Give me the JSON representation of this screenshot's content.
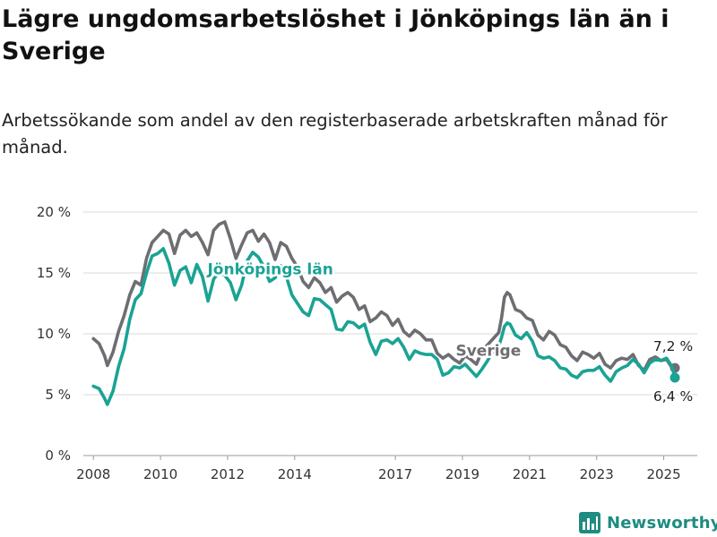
{
  "title": "Lägre ungdomsarbetslöshet i Jönköpings län än i Sverige",
  "subtitle": "Arbetssökande som andel av den registerbaserade arbetskraften månad för månad.",
  "brand": "Newsworthy",
  "colors": {
    "jonkoping": "#1aa394",
    "sverige": "#6e6e72",
    "grid": "#d9d9d9",
    "brand": "#1e8c80"
  },
  "chart_data": {
    "type": "line",
    "title": "Lägre ungdomsarbetslöshet i Jönköpings län än i Sverige",
    "subtitle": "Arbetssökande som andel av den registerbaserade arbetskraften månad för månad.",
    "xlabel": "",
    "ylabel": "",
    "x_ticks": [
      "2008",
      "2010",
      "2012",
      "2014",
      "2017",
      "2019",
      "2021",
      "2023",
      "2025"
    ],
    "y_ticks": [
      "0 %",
      "5 %",
      "10 %",
      "15 %",
      "20 %"
    ],
    "ylim": [
      0,
      20
    ],
    "grid": "horizontal",
    "legend": "inline labels",
    "end_labels": {
      "sverige": "7,2 %",
      "jonkoping": "6,4 %"
    },
    "series": [
      {
        "name": "Sverige",
        "key": "sverige",
        "points": [
          [
            "2008-01",
            9.6
          ],
          [
            "2008-03",
            9.2
          ],
          [
            "2008-05",
            8.2
          ],
          [
            "2008-06",
            7.4
          ],
          [
            "2008-08",
            8.5
          ],
          [
            "2008-10",
            10.2
          ],
          [
            "2008-12",
            11.5
          ],
          [
            "2009-02",
            13.2
          ],
          [
            "2009-04",
            14.3
          ],
          [
            "2009-06",
            14.0
          ],
          [
            "2009-08",
            16.2
          ],
          [
            "2009-10",
            17.5
          ],
          [
            "2009-12",
            18.0
          ],
          [
            "2010-02",
            18.5
          ],
          [
            "2010-04",
            18.2
          ],
          [
            "2010-06",
            16.6
          ],
          [
            "2010-08",
            18.1
          ],
          [
            "2010-10",
            18.5
          ],
          [
            "2010-12",
            18.0
          ],
          [
            "2011-02",
            18.3
          ],
          [
            "2011-04",
            17.5
          ],
          [
            "2011-06",
            16.5
          ],
          [
            "2011-08",
            18.5
          ],
          [
            "2011-10",
            19.0
          ],
          [
            "2011-12",
            19.2
          ],
          [
            "2012-02",
            17.8
          ],
          [
            "2012-04",
            16.2
          ],
          [
            "2012-06",
            17.3
          ],
          [
            "2012-08",
            18.3
          ],
          [
            "2012-10",
            18.5
          ],
          [
            "2012-12",
            17.6
          ],
          [
            "2013-02",
            18.2
          ],
          [
            "2013-04",
            17.5
          ],
          [
            "2013-06",
            16.1
          ],
          [
            "2013-08",
            17.5
          ],
          [
            "2013-10",
            17.2
          ],
          [
            "2013-12",
            16.2
          ],
          [
            "2014-02",
            15.5
          ],
          [
            "2014-04",
            14.3
          ],
          [
            "2014-06",
            13.8
          ],
          [
            "2014-08",
            14.6
          ],
          [
            "2014-10",
            14.2
          ],
          [
            "2014-12",
            13.4
          ],
          [
            "2015-02",
            13.8
          ],
          [
            "2015-04",
            12.6
          ],
          [
            "2015-06",
            13.1
          ],
          [
            "2015-08",
            13.4
          ],
          [
            "2015-10",
            13.0
          ],
          [
            "2015-12",
            12.0
          ],
          [
            "2016-02",
            12.3
          ],
          [
            "2016-04",
            11.0
          ],
          [
            "2016-06",
            11.3
          ],
          [
            "2016-08",
            11.8
          ],
          [
            "2016-10",
            11.5
          ],
          [
            "2016-12",
            10.7
          ],
          [
            "2017-02",
            11.2
          ],
          [
            "2017-04",
            10.2
          ],
          [
            "2017-06",
            9.8
          ],
          [
            "2017-08",
            10.3
          ],
          [
            "2017-10",
            10.0
          ],
          [
            "2017-12",
            9.5
          ],
          [
            "2018-02",
            9.5
          ],
          [
            "2018-04",
            8.4
          ],
          [
            "2018-06",
            8.0
          ],
          [
            "2018-08",
            8.3
          ],
          [
            "2018-10",
            7.9
          ],
          [
            "2018-12",
            7.6
          ],
          [
            "2019-02",
            8.2
          ],
          [
            "2019-04",
            7.9
          ],
          [
            "2019-06",
            7.5
          ],
          [
            "2019-08",
            8.6
          ],
          [
            "2019-10",
            9.1
          ],
          [
            "2019-12",
            9.6
          ],
          [
            "2020-02",
            10.1
          ],
          [
            "2020-03",
            11.3
          ],
          [
            "2020-04",
            13.0
          ],
          [
            "2020-05",
            13.4
          ],
          [
            "2020-06",
            13.2
          ],
          [
            "2020-08",
            12.0
          ],
          [
            "2020-10",
            11.8
          ],
          [
            "2020-12",
            11.3
          ],
          [
            "2021-02",
            11.1
          ],
          [
            "2021-04",
            9.9
          ],
          [
            "2021-06",
            9.5
          ],
          [
            "2021-08",
            10.2
          ],
          [
            "2021-10",
            9.9
          ],
          [
            "2021-12",
            9.1
          ],
          [
            "2022-02",
            8.9
          ],
          [
            "2022-04",
            8.2
          ],
          [
            "2022-06",
            7.8
          ],
          [
            "2022-08",
            8.5
          ],
          [
            "2022-10",
            8.3
          ],
          [
            "2022-12",
            8.0
          ],
          [
            "2023-02",
            8.4
          ],
          [
            "2023-04",
            7.5
          ],
          [
            "2023-06",
            7.2
          ],
          [
            "2023-08",
            7.8
          ],
          [
            "2023-10",
            8.0
          ],
          [
            "2023-12",
            7.9
          ],
          [
            "2024-02",
            8.3
          ],
          [
            "2024-04",
            7.4
          ],
          [
            "2024-06",
            7.0
          ],
          [
            "2024-08",
            7.9
          ],
          [
            "2024-10",
            8.1
          ],
          [
            "2024-12",
            7.8
          ],
          [
            "2025-02",
            7.9
          ],
          [
            "2025-04",
            7.2
          ],
          [
            "2025-05",
            7.2
          ]
        ]
      },
      {
        "name": "Jönköpings län",
        "key": "jonkoping",
        "points": [
          [
            "2008-01",
            5.7
          ],
          [
            "2008-03",
            5.5
          ],
          [
            "2008-05",
            4.7
          ],
          [
            "2008-06",
            4.2
          ],
          [
            "2008-08",
            5.3
          ],
          [
            "2008-10",
            7.3
          ],
          [
            "2008-12",
            8.8
          ],
          [
            "2009-02",
            11.2
          ],
          [
            "2009-04",
            12.8
          ],
          [
            "2009-06",
            13.3
          ],
          [
            "2009-08",
            15.0
          ],
          [
            "2009-10",
            16.4
          ],
          [
            "2009-12",
            16.6
          ],
          [
            "2010-02",
            17.0
          ],
          [
            "2010-04",
            15.8
          ],
          [
            "2010-06",
            14.0
          ],
          [
            "2010-08",
            15.2
          ],
          [
            "2010-10",
            15.5
          ],
          [
            "2010-12",
            14.2
          ],
          [
            "2011-02",
            15.7
          ],
          [
            "2011-04",
            14.7
          ],
          [
            "2011-06",
            12.7
          ],
          [
            "2011-08",
            14.5
          ],
          [
            "2011-10",
            15.1
          ],
          [
            "2011-12",
            14.8
          ],
          [
            "2012-02",
            14.2
          ],
          [
            "2012-04",
            12.8
          ],
          [
            "2012-06",
            14.0
          ],
          [
            "2012-08",
            16.0
          ],
          [
            "2012-10",
            16.7
          ],
          [
            "2012-12",
            16.3
          ],
          [
            "2013-02",
            15.5
          ],
          [
            "2013-04",
            14.3
          ],
          [
            "2013-06",
            14.6
          ],
          [
            "2013-08",
            15.6
          ],
          [
            "2013-10",
            14.7
          ],
          [
            "2013-12",
            13.2
          ],
          [
            "2014-02",
            12.5
          ],
          [
            "2014-04",
            11.8
          ],
          [
            "2014-06",
            11.5
          ],
          [
            "2014-08",
            12.9
          ],
          [
            "2014-10",
            12.8
          ],
          [
            "2014-12",
            12.4
          ],
          [
            "2015-02",
            12.0
          ],
          [
            "2015-04",
            10.4
          ],
          [
            "2015-06",
            10.3
          ],
          [
            "2015-08",
            11.0
          ],
          [
            "2015-10",
            10.9
          ],
          [
            "2015-12",
            10.5
          ],
          [
            "2016-02",
            10.8
          ],
          [
            "2016-04",
            9.3
          ],
          [
            "2016-06",
            8.3
          ],
          [
            "2016-08",
            9.4
          ],
          [
            "2016-10",
            9.5
          ],
          [
            "2016-12",
            9.2
          ],
          [
            "2017-02",
            9.6
          ],
          [
            "2017-04",
            8.9
          ],
          [
            "2017-06",
            7.9
          ],
          [
            "2017-08",
            8.6
          ],
          [
            "2017-10",
            8.4
          ],
          [
            "2017-12",
            8.3
          ],
          [
            "2018-02",
            8.3
          ],
          [
            "2018-04",
            7.9
          ],
          [
            "2018-06",
            6.6
          ],
          [
            "2018-08",
            6.8
          ],
          [
            "2018-10",
            7.3
          ],
          [
            "2018-12",
            7.2
          ],
          [
            "2019-02",
            7.5
          ],
          [
            "2019-04",
            7.0
          ],
          [
            "2019-06",
            6.5
          ],
          [
            "2019-08",
            7.1
          ],
          [
            "2019-10",
            7.8
          ],
          [
            "2019-12",
            8.6
          ],
          [
            "2020-02",
            9.0
          ],
          [
            "2020-03",
            9.7
          ],
          [
            "2020-04",
            10.6
          ],
          [
            "2020-05",
            10.9
          ],
          [
            "2020-06",
            10.8
          ],
          [
            "2020-08",
            9.9
          ],
          [
            "2020-10",
            9.6
          ],
          [
            "2020-12",
            10.1
          ],
          [
            "2021-02",
            9.4
          ],
          [
            "2021-04",
            8.2
          ],
          [
            "2021-06",
            8.0
          ],
          [
            "2021-08",
            8.1
          ],
          [
            "2021-10",
            7.8
          ],
          [
            "2021-12",
            7.2
          ],
          [
            "2022-02",
            7.1
          ],
          [
            "2022-04",
            6.6
          ],
          [
            "2022-06",
            6.4
          ],
          [
            "2022-08",
            6.9
          ],
          [
            "2022-10",
            7.0
          ],
          [
            "2022-12",
            7.0
          ],
          [
            "2023-02",
            7.3
          ],
          [
            "2023-04",
            6.6
          ],
          [
            "2023-06",
            6.1
          ],
          [
            "2023-08",
            6.9
          ],
          [
            "2023-10",
            7.2
          ],
          [
            "2023-12",
            7.4
          ],
          [
            "2024-02",
            7.9
          ],
          [
            "2024-04",
            7.5
          ],
          [
            "2024-06",
            6.8
          ],
          [
            "2024-08",
            7.6
          ],
          [
            "2024-10",
            7.9
          ],
          [
            "2024-12",
            7.8
          ],
          [
            "2025-02",
            8.0
          ],
          [
            "2025-04",
            7.3
          ],
          [
            "2025-05",
            6.4
          ]
        ]
      }
    ]
  }
}
